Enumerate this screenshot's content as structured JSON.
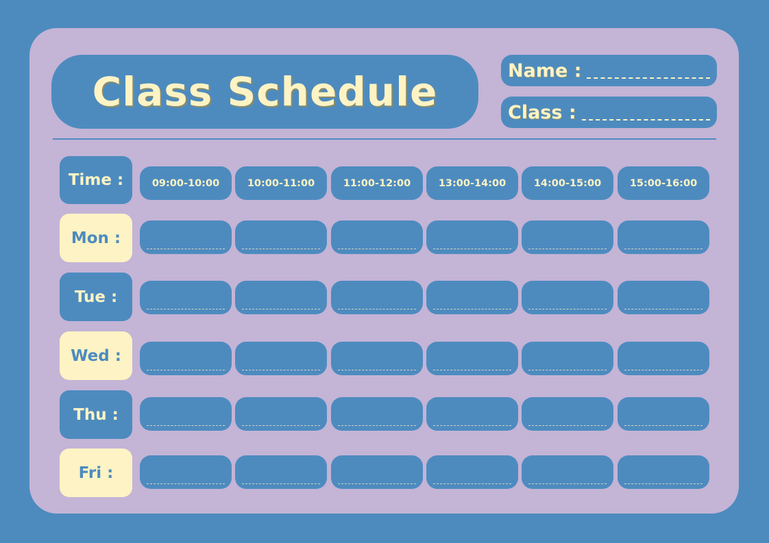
{
  "title": "Class Schedule",
  "fields": {
    "name_label": "Name :",
    "class_label": "Class :"
  },
  "time_label": "Time :",
  "time_slots": [
    "09:00-10:00",
    "10:00-11:00",
    "11:00-12:00",
    "13:00-14:00",
    "14:00-15:00",
    "15:00-16:00"
  ],
  "days": [
    {
      "label": "Mon :",
      "style": "cream"
    },
    {
      "label": "Tue :",
      "style": "blue"
    },
    {
      "label": "Wed :",
      "style": "cream"
    },
    {
      "label": "Thu :",
      "style": "blue"
    },
    {
      "label": "Fri :",
      "style": "cream"
    }
  ],
  "colors": {
    "background": "#4d8bbf",
    "card": "#c4b4d6",
    "accent": "#fdf3c4"
  }
}
